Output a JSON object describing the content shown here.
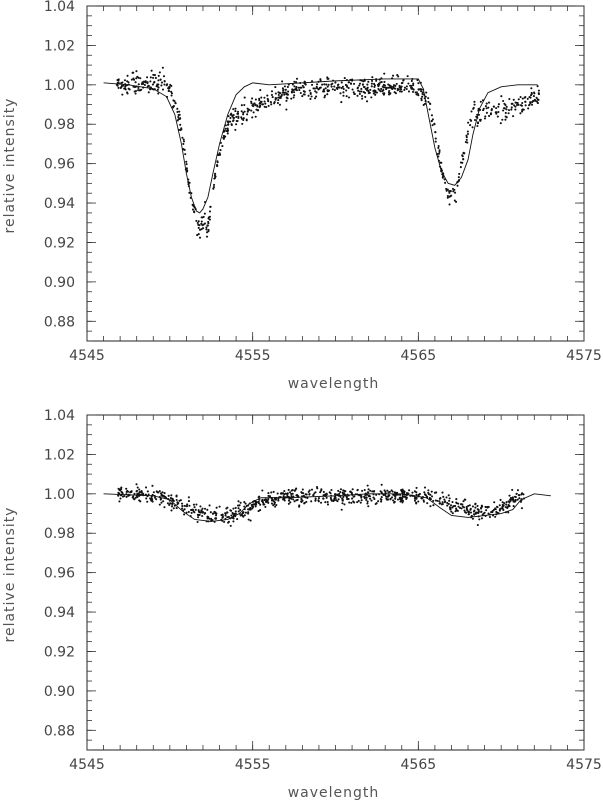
{
  "chart_data": [
    {
      "type": "scatter",
      "xlabel": "wavelength",
      "ylabel": "relative intensity",
      "xlim": [
        4545,
        4575
      ],
      "ylim": [
        0.87,
        1.04
      ],
      "xticks": [
        "4545",
        "4555",
        "4565",
        "4575"
      ],
      "yticks": [
        "0.88",
        "0.90",
        "0.92",
        "0.94",
        "0.96",
        "0.98",
        "1.00",
        "1.02",
        "1.04"
      ],
      "series": [
        {
          "kind": "points",
          "x_range": [
            4546.8,
            4572.3
          ],
          "count": 900,
          "noise": 0.0025,
          "dips": [
            {
              "center": 4551.8,
              "depth": 0.074,
              "width": 0.75
            },
            {
              "center": 4567.0,
              "depth": 0.058,
              "width": 0.75
            }
          ],
          "wings": [
            {
              "center": 4553.6,
              "depth": 0.016,
              "width": 2.0
            },
            {
              "center": 4569.8,
              "depth": 0.014,
              "width": 2.0
            }
          ]
        },
        {
          "kind": "line",
          "x": [
            4546.0,
            4547.5,
            4549.0,
            4549.8,
            4550.3,
            4550.7,
            4551.0,
            4551.3,
            4551.6,
            4551.8,
            4552.0,
            4552.3,
            4552.6,
            4553.0,
            4553.5,
            4554.0,
            4554.5,
            4555.0,
            4556.0,
            4560.0,
            4563.0,
            4565.0,
            4565.3,
            4565.6,
            4566.0,
            4566.4,
            4566.8,
            4567.2,
            4567.6,
            4568.0,
            4568.3,
            4568.7,
            4569.2,
            4570.0,
            4571.0,
            4572.2
          ],
          "y": [
            1.001,
            1.0,
            0.998,
            0.994,
            0.985,
            0.97,
            0.955,
            0.943,
            0.936,
            0.935,
            0.937,
            0.943,
            0.955,
            0.97,
            0.985,
            0.995,
            0.999,
            1.001,
            1.0,
            1.002,
            1.003,
            1.003,
            0.998,
            0.985,
            0.968,
            0.956,
            0.95,
            0.949,
            0.953,
            0.962,
            0.975,
            0.988,
            0.996,
            0.999,
            1.0,
            1.0
          ]
        }
      ]
    },
    {
      "type": "scatter",
      "xlabel": "wavelength",
      "ylabel": "relative intensity",
      "xlim": [
        4545,
        4575
      ],
      "ylim": [
        0.87,
        1.04
      ],
      "xticks": [
        "4545",
        "4555",
        "4565",
        "4575"
      ],
      "yticks": [
        "0.88",
        "0.90",
        "0.92",
        "0.94",
        "0.96",
        "0.98",
        "1.00",
        "1.02",
        "1.04"
      ],
      "series": [
        {
          "kind": "points",
          "x_range": [
            4546.8,
            4571.4
          ],
          "count": 900,
          "noise": 0.0022,
          "dips": [
            {
              "center": 4552.8,
              "depth": 0.013,
              "width": 1.9
            },
            {
              "center": 4568.8,
              "depth": 0.01,
              "width": 1.7
            }
          ],
          "wings": []
        },
        {
          "kind": "line",
          "x": [
            4546.0,
            4549.0,
            4550.0,
            4550.8,
            4551.5,
            4552.5,
            4553.5,
            4554.2,
            4554.8,
            4555.5,
            4557.0,
            4560.0,
            4562.0,
            4564.0,
            4565.5,
            4566.3,
            4567.0,
            4568.0,
            4569.0,
            4570.0,
            4570.7,
            4571.2,
            4572.0,
            4573.0
          ],
          "y": [
            1.0,
            0.999,
            0.997,
            0.991,
            0.987,
            0.986,
            0.987,
            0.99,
            0.995,
            0.998,
            0.998,
            0.999,
            1.0,
            1.0,
            0.998,
            0.993,
            0.989,
            0.988,
            0.989,
            0.99,
            0.992,
            0.997,
            1.0,
            0.999
          ]
        }
      ]
    }
  ]
}
